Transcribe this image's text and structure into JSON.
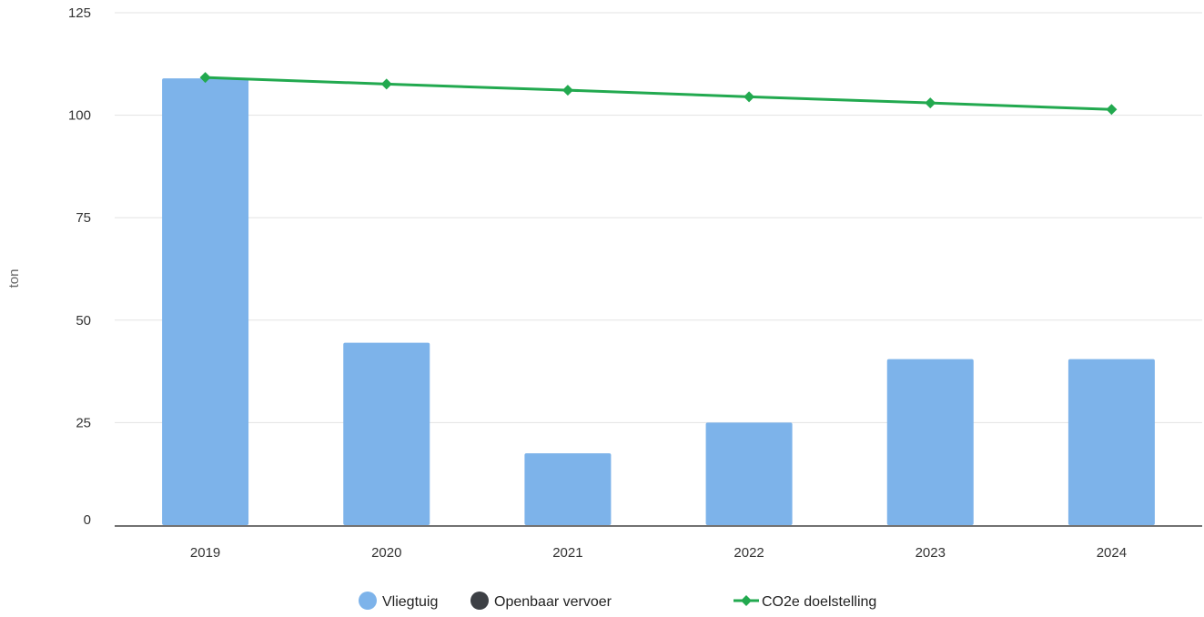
{
  "chart_data": {
    "type": "bar",
    "title": "",
    "xlabel": "",
    "ylabel": "ton",
    "ylim": [
      0,
      125
    ],
    "yticks": [
      0,
      25,
      50,
      75,
      100,
      125
    ],
    "grid": true,
    "legend_position": "bottom",
    "categories": [
      "2019",
      "2020",
      "2021",
      "2022",
      "2023",
      "2024"
    ],
    "series": [
      {
        "name": "Vliegtuig",
        "kind": "bar",
        "color": "#7db3ea",
        "values": [
          109,
          44.5,
          17.5,
          25,
          40.5,
          40.5
        ]
      },
      {
        "name": "Openbaar vervoer",
        "kind": "bar",
        "color": "#3d4045",
        "values": [
          0,
          0,
          0,
          0,
          0,
          0
        ]
      },
      {
        "name": "CO2e doelstelling",
        "kind": "line",
        "color": "#22a94f",
        "values": [
          109.2,
          107.6,
          106.1,
          104.5,
          103.0,
          101.4
        ]
      }
    ]
  }
}
